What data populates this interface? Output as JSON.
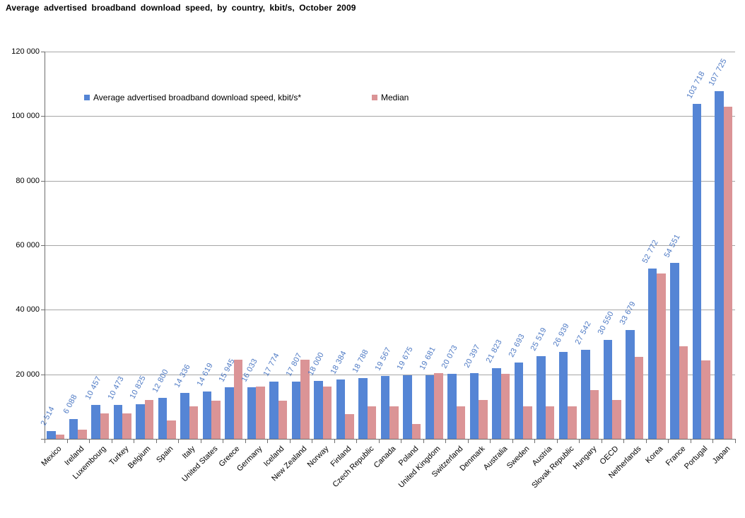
{
  "title": "Average advertised broadband download speed, by country, kbit/s, October 2009",
  "legend": {
    "series1_label": "Average advertised broadband download speed, kbit/s*",
    "series2_label": "Median"
  },
  "colors": {
    "average_bar": "#5585D5",
    "median_bar": "#DB9496",
    "value_label": "#4d79c4",
    "gridline": "#a6a6a6",
    "axis": "#6e6e6e"
  },
  "chart_data": {
    "type": "bar",
    "title": "Average advertised broadband download speed, by country, kbit/s, October 2009",
    "categories": [
      "Mexico",
      "Ireland",
      "Luxembourg",
      "Turkey",
      "Belgium",
      "Spain",
      "Italy",
      "United States",
      "Greece",
      "Germany",
      "Iceland",
      "New Zealand",
      "Norway",
      "Finland",
      "Czech Republic",
      "Canada",
      "Poland",
      "United Kingdom",
      "Switzerland",
      "Denmark",
      "Australia",
      "Sweden",
      "Austria",
      "Slovak Republic",
      "Hungary",
      "OECD",
      "Netherlands",
      "Korea",
      "France",
      "Portugal",
      "Japan"
    ],
    "series": [
      {
        "name": "Average advertised broadband download speed, kbit/s*",
        "color": "#5585D5",
        "data_labels": true,
        "values": [
          2514,
          6088,
          10457,
          10473,
          10825,
          12800,
          14336,
          14619,
          15945,
          16033,
          17774,
          17807,
          18000,
          18384,
          18788,
          19567,
          19675,
          19681,
          20073,
          20397,
          21823,
          23693,
          25519,
          26939,
          27542,
          30550,
          33679,
          52772,
          54551,
          103718,
          107725
        ]
      },
      {
        "name": "Median",
        "color": "#DB9496",
        "data_labels": false,
        "values": [
          1300,
          2800,
          7900,
          7900,
          12000,
          5700,
          10000,
          11900,
          24500,
          16200,
          11900,
          24500,
          16200,
          7700,
          10100,
          10100,
          4700,
          20400,
          10100,
          12000,
          20100,
          10100,
          10100,
          10100,
          15100,
          12000,
          25300,
          51200,
          28600,
          24400,
          102900
        ]
      }
    ],
    "xlabel": "",
    "ylabel": "",
    "ylim": [
      0,
      120000
    ],
    "ytick_step": 20000,
    "ytick_labels": [
      "20 000",
      "40 000",
      "60 000",
      "80 000",
      "100 000",
      "120 000"
    ],
    "grid": true,
    "legend_position": "top-left-inside"
  }
}
